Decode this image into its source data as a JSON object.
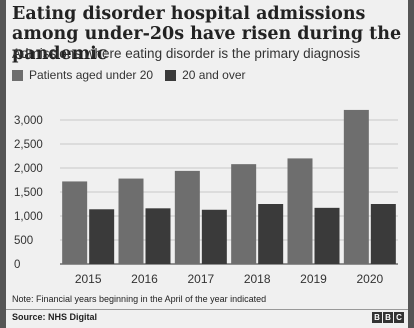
{
  "header": {
    "title": "Eating disorder hospital admissions among under-20s have risen during the pandemic",
    "subtitle": "Admissions where eating disorder is the primary diagnosis"
  },
  "footer": {
    "note": "Note: Financial years beginning in the April of the year indicated",
    "source": "Source: NHS Digital",
    "logo_letters": [
      "B",
      "B",
      "C"
    ]
  },
  "colors": {
    "series_under_20": "#6e6e6e",
    "series_20_over": "#3a3a3a",
    "gridline": "#bdbdbd",
    "baseline": "#555555"
  },
  "chart_data": {
    "type": "bar",
    "title": "Eating disorder hospital admissions among under-20s have risen during the pandemic",
    "subtitle": "Admissions where eating disorder is the primary diagnosis",
    "categories": [
      "2015",
      "2016",
      "2017",
      "2018",
      "2019",
      "2020"
    ],
    "series": [
      {
        "name": "Patients aged under 20",
        "values": [
          1720,
          1780,
          1940,
          2080,
          2200,
          3210
        ]
      },
      {
        "name": "20 and over",
        "values": [
          1140,
          1160,
          1130,
          1250,
          1170,
          1250
        ]
      }
    ],
    "yticks": [
      0,
      500,
      1000,
      1500,
      2000,
      2500,
      3000
    ],
    "ytick_labels": [
      "0",
      "500",
      "1,000",
      "1,500",
      "2,000",
      "2,500",
      "3,000"
    ],
    "ylim": [
      0,
      3300
    ],
    "xlabel": "",
    "ylabel": "",
    "grid": true,
    "legend": "top-left"
  }
}
